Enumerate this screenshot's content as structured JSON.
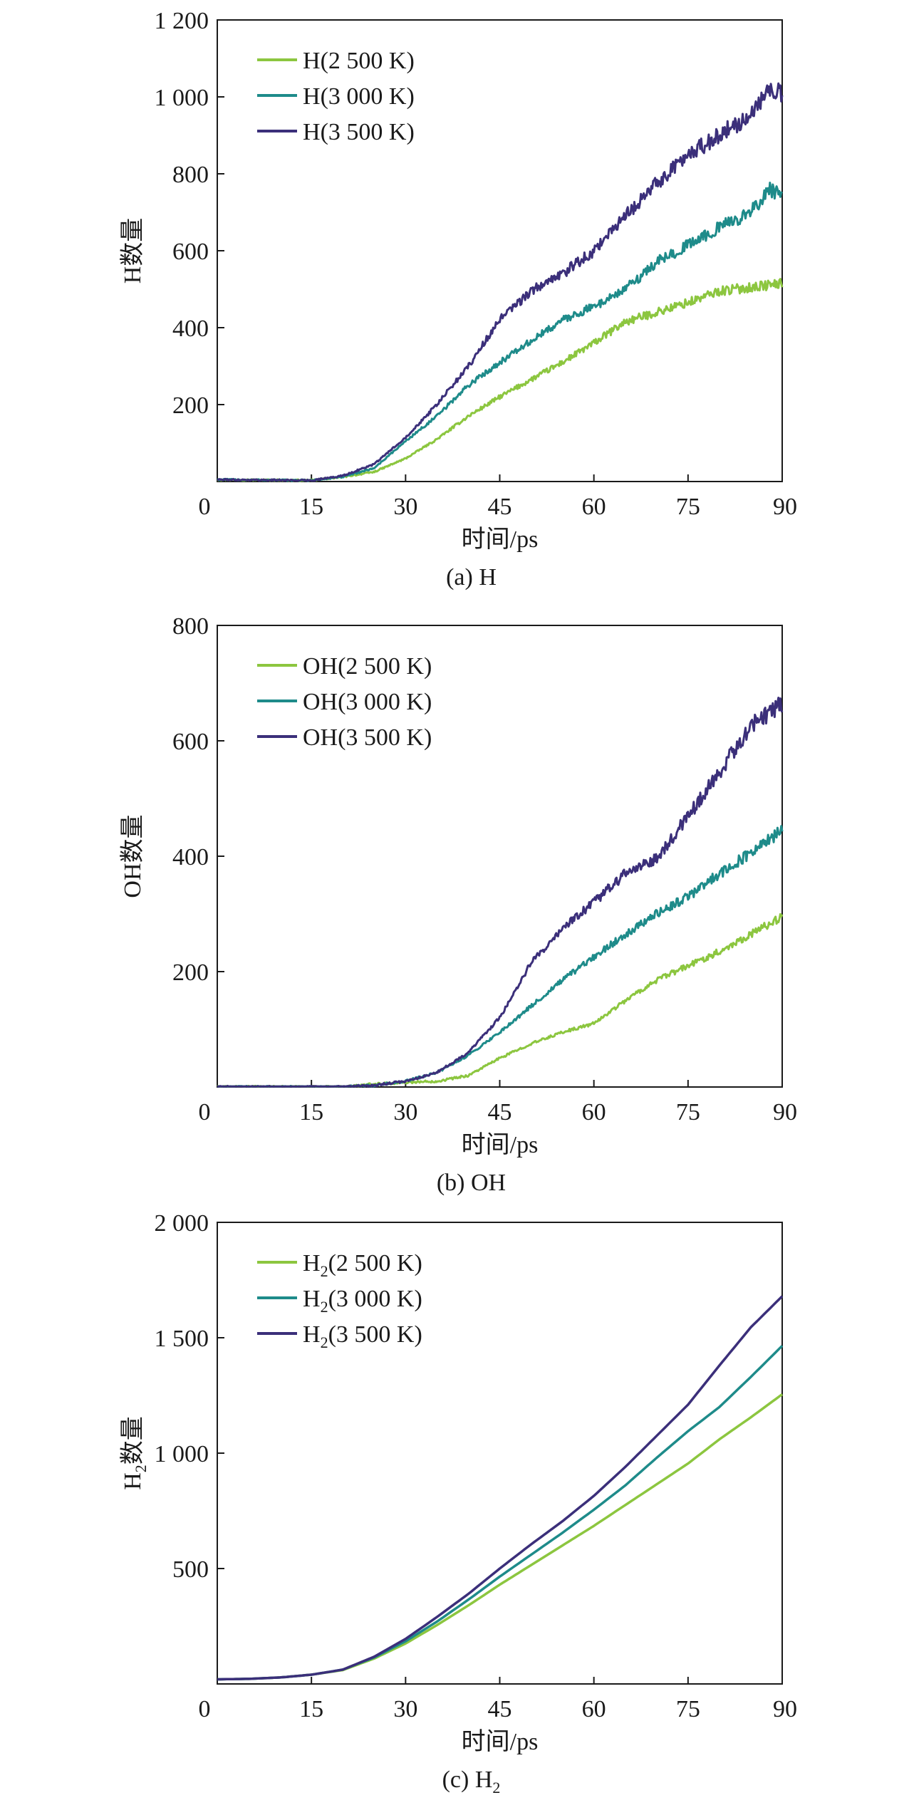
{
  "chart_data": [
    {
      "id": "a",
      "type": "line",
      "caption": "(a) H",
      "caption_main": "(a) H",
      "caption_sub": "",
      "xlabel": "时间/ps",
      "ylabel": "H数量",
      "ylabel_main": "H",
      "ylabel_sub": "",
      "ylabel_suffix": "数量",
      "xlim": [
        0,
        90
      ],
      "ylim": [
        0,
        1200
      ],
      "xticks": [
        0,
        15,
        30,
        45,
        60,
        75,
        90
      ],
      "xtick_labels": [
        "0",
        "15",
        "30",
        "45",
        "60",
        "75",
        "90"
      ],
      "yticks": [
        200,
        400,
        600,
        800,
        1000,
        1200
      ],
      "ytick_labels": [
        "200",
        "400",
        "600",
        "800",
        "1 000",
        "1 200"
      ],
      "legend_position": "top-left",
      "series": [
        {
          "name": "H(2 500 K)",
          "legend_main": "H",
          "legend_sub": "",
          "legend_rest": "(2 500 K)",
          "color": "#8cc63f",
          "x": [
            0,
            15,
            20,
            25,
            30,
            35,
            40,
            45,
            50,
            55,
            60,
            65,
            70,
            75,
            80,
            85,
            90
          ],
          "y": [
            5,
            3,
            12,
            25,
            60,
            110,
            170,
            220,
            265,
            310,
            360,
            415,
            440,
            465,
            495,
            505,
            515
          ]
        },
        {
          "name": "H(3 000 K)",
          "legend_main": "H",
          "legend_sub": "",
          "legend_rest": "(3 000 K)",
          "color": "#1e8b8a",
          "x": [
            0,
            15,
            20,
            25,
            30,
            35,
            40,
            45,
            50,
            55,
            60,
            65,
            70,
            75,
            80,
            85,
            88,
            90
          ],
          "y": [
            5,
            3,
            12,
            35,
            105,
            170,
            250,
            310,
            365,
            420,
            455,
            500,
            570,
            615,
            660,
            700,
            760,
            740
          ]
        },
        {
          "name": "H(3 500 K)",
          "legend_main": "H",
          "legend_sub": "",
          "legend_rest": "(3 500 K)",
          "color": "#3b2f7a",
          "x": [
            0,
            15,
            20,
            25,
            30,
            35,
            40,
            45,
            50,
            55,
            60,
            65,
            70,
            75,
            80,
            85,
            88,
            90
          ],
          "y": [
            5,
            3,
            15,
            45,
            115,
            200,
            300,
            420,
            495,
            540,
            600,
            690,
            775,
            850,
            900,
            955,
            1020,
            1010
          ]
        }
      ]
    },
    {
      "id": "b",
      "type": "line",
      "caption": "(b) OH",
      "caption_main": "(b) OH",
      "caption_sub": "",
      "xlabel": "时间/ps",
      "ylabel": "OH数量",
      "ylabel_main": "OH",
      "ylabel_sub": "",
      "ylabel_suffix": "数量",
      "xlim": [
        0,
        90
      ],
      "ylim": [
        0,
        800
      ],
      "xticks": [
        0,
        15,
        30,
        45,
        60,
        75,
        90
      ],
      "xtick_labels": [
        "0",
        "15",
        "30",
        "45",
        "60",
        "75",
        "90"
      ],
      "yticks": [
        200,
        400,
        600,
        800
      ],
      "ytick_labels": [
        "200",
        "400",
        "600",
        "800"
      ],
      "legend_position": "top-left",
      "series": [
        {
          "name": "OH(2 500 K)",
          "legend_main": "OH",
          "legend_sub": "",
          "legend_rest": "(2 500 K)",
          "color": "#8cc63f",
          "x": [
            0,
            20,
            25,
            30,
            35,
            40,
            45,
            50,
            55,
            60,
            65,
            70,
            75,
            80,
            85,
            90
          ],
          "y": [
            0,
            0,
            5,
            8,
            10,
            20,
            50,
            75,
            95,
            110,
            150,
            185,
            210,
            235,
            265,
            295
          ]
        },
        {
          "name": "OH(3 000 K)",
          "legend_main": "OH",
          "legend_sub": "",
          "legend_rest": "(3 000 K)",
          "color": "#1e8b8a",
          "x": [
            0,
            20,
            25,
            30,
            35,
            40,
            45,
            50,
            55,
            60,
            65,
            70,
            75,
            80,
            85,
            90
          ],
          "y": [
            0,
            0,
            3,
            10,
            25,
            55,
            95,
            140,
            185,
            225,
            265,
            300,
            330,
            370,
            405,
            445
          ]
        },
        {
          "name": "OH(3 500 K)",
          "legend_main": "OH",
          "legend_sub": "",
          "legend_rest": "(3 500 K)",
          "color": "#3b2f7a",
          "x": [
            0,
            20,
            25,
            30,
            35,
            40,
            45,
            50,
            55,
            60,
            65,
            70,
            75,
            80,
            85,
            90
          ],
          "y": [
            0,
            0,
            3,
            10,
            25,
            60,
            120,
            215,
            275,
            320,
            370,
            395,
            470,
            545,
            625,
            665
          ]
        }
      ]
    },
    {
      "id": "c",
      "type": "line",
      "caption": "(c) H2",
      "caption_main": "(c) H",
      "caption_sub": "2",
      "xlabel": "时间/ps",
      "ylabel": "H2数量",
      "ylabel_main": "H",
      "ylabel_sub": "2",
      "ylabel_suffix": "数量",
      "xlim": [
        0,
        90
      ],
      "ylim": [
        0,
        2000
      ],
      "xticks": [
        0,
        15,
        30,
        45,
        60,
        75,
        90
      ],
      "xtick_labels": [
        "0",
        "15",
        "30",
        "45",
        "60",
        "75",
        "90"
      ],
      "yticks": [
        500,
        1000,
        1500,
        2000
      ],
      "ytick_labels": [
        "500",
        "1 000",
        "1 500",
        "2 000"
      ],
      "legend_position": "top-left",
      "series": [
        {
          "name": "H2(2 500 K)",
          "legend_main": "H",
          "legend_sub": "2",
          "legend_rest": "(2 500 K)",
          "color": "#8cc63f",
          "x": [
            0,
            5,
            10,
            15,
            20,
            25,
            30,
            35,
            40,
            45,
            50,
            55,
            60,
            65,
            70,
            75,
            80,
            85,
            90
          ],
          "y": [
            20,
            22,
            28,
            40,
            60,
            110,
            175,
            255,
            340,
            430,
            515,
            600,
            685,
            775,
            865,
            955,
            1060,
            1155,
            1255
          ]
        },
        {
          "name": "H2(3 000 K)",
          "legend_main": "H",
          "legend_sub": "2",
          "legend_rest": "(3 000 K)",
          "color": "#1e8b8a",
          "x": [
            0,
            5,
            10,
            15,
            20,
            25,
            30,
            35,
            40,
            45,
            50,
            55,
            60,
            65,
            70,
            75,
            80,
            85,
            90
          ],
          "y": [
            20,
            22,
            28,
            40,
            62,
            115,
            185,
            270,
            365,
            465,
            560,
            655,
            755,
            860,
            980,
            1095,
            1200,
            1330,
            1465
          ]
        },
        {
          "name": "H2(3 500 K)",
          "legend_main": "H",
          "legend_sub": "2",
          "legend_rest": "(3 500 K)",
          "color": "#3b2f7a",
          "x": [
            0,
            5,
            10,
            15,
            20,
            25,
            30,
            35,
            40,
            45,
            50,
            55,
            60,
            65,
            70,
            75,
            80,
            85,
            90
          ],
          "y": [
            20,
            22,
            28,
            40,
            62,
            118,
            195,
            290,
            390,
            500,
            605,
            705,
            815,
            940,
            1075,
            1210,
            1380,
            1545,
            1680
          ]
        }
      ]
    }
  ]
}
